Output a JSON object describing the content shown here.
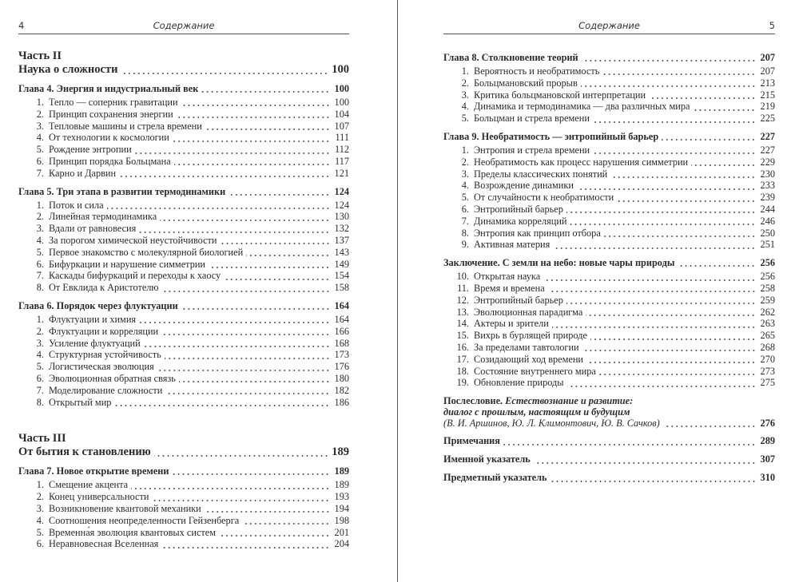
{
  "left_page": {
    "page_number": "4",
    "running_head": "Содержание",
    "parts": [
      {
        "label": "Часть II",
        "title": "Наука о сложности",
        "page": "100",
        "chapters": [
          {
            "title": "Глава 4.  Энергия и индустриальный век",
            "page": "100",
            "sections": [
              {
                "n": "1.",
                "t": "Тепло — соперник гравитации",
                "p": "100"
              },
              {
                "n": "2.",
                "t": "Принцип сохранения энергии",
                "p": "104"
              },
              {
                "n": "3.",
                "t": "Тепловые машины и стрела времени",
                "p": "107"
              },
              {
                "n": "4.",
                "t": "От технологии к космологии",
                "p": "111"
              },
              {
                "n": "5.",
                "t": "Рождение энтропии",
                "p": "112"
              },
              {
                "n": "6.",
                "t": "Принцип порядка Больцмана",
                "p": "117"
              },
              {
                "n": "7.",
                "t": "Карно и Дарвин",
                "p": "121"
              }
            ]
          },
          {
            "title": "Глава 5.  Три этапа в развитии термодинамики",
            "page": "124",
            "sections": [
              {
                "n": "1.",
                "t": "Поток и сила",
                "p": "124"
              },
              {
                "n": "2.",
                "t": "Линейная термодинамика",
                "p": "130"
              },
              {
                "n": "3.",
                "t": "Вдали от равновесия",
                "p": "132"
              },
              {
                "n": "4.",
                "t": "За порогом химической неустойчивости",
                "p": "137"
              },
              {
                "n": "5.",
                "t": "Первое знакомство с молекулярной биологией",
                "p": "143"
              },
              {
                "n": "6.",
                "t": "Бифуркации и нарушение симметрии",
                "p": "149"
              },
              {
                "n": "7.",
                "t": "Каскады бифуркаций и переходы к хаосу",
                "p": "154"
              },
              {
                "n": "8.",
                "t": "От Евклида к Аристотелю",
                "p": "158"
              }
            ]
          },
          {
            "title": "Глава 6.  Порядок через флуктуации",
            "page": "164",
            "sections": [
              {
                "n": "1.",
                "t": "Флуктуации и химия",
                "p": "164"
              },
              {
                "n": "2.",
                "t": "Флуктуации и корреляции",
                "p": "166"
              },
              {
                "n": "3.",
                "t": "Усиление флуктуаций",
                "p": "168"
              },
              {
                "n": "4.",
                "t": "Структурная устойчивость",
                "p": "173"
              },
              {
                "n": "5.",
                "t": "Логистическая эволюция",
                "p": "176"
              },
              {
                "n": "6.",
                "t": "Эволюционная обратная связь",
                "p": "180"
              },
              {
                "n": "7.",
                "t": "Моделирование сложности",
                "p": "182"
              },
              {
                "n": "8.",
                "t": "Открытый мир",
                "p": "186"
              }
            ]
          }
        ]
      },
      {
        "label": "Часть III",
        "title": "От бытия к становлению",
        "page": "189",
        "chapters": [
          {
            "title": "Глава 7.  Новое открытие времени",
            "page": "189",
            "sections": [
              {
                "n": "1.",
                "t": "Смещение акцента",
                "p": "189"
              },
              {
                "n": "2.",
                "t": "Конец универсальности",
                "p": "193"
              },
              {
                "n": "3.",
                "t": "Возникновение квантовой механики",
                "p": "194"
              },
              {
                "n": "4.",
                "t": "Соотношения неопределенности Гейзенберга",
                "p": "198"
              },
              {
                "n": "5.",
                "t": "Временна́я эволюция квантовых систем",
                "p": "201"
              },
              {
                "n": "6.",
                "t": "Неравновесная Вселенная",
                "p": "204"
              }
            ]
          }
        ]
      }
    ]
  },
  "right_page": {
    "page_number": "5",
    "running_head": "Содержание",
    "chapters": [
      {
        "title": "Глава 8.  Столкновение теорий",
        "page": "207",
        "sections": [
          {
            "n": "1.",
            "t": "Вероятность и необратимость",
            "p": "207"
          },
          {
            "n": "2.",
            "t": "Больцмановский прорыв",
            "p": "213"
          },
          {
            "n": "3.",
            "t": "Критика больцмановской интерпретации",
            "p": "215"
          },
          {
            "n": "4.",
            "t": "Динамика и термодинамика — два различных мира",
            "p": "219"
          },
          {
            "n": "5.",
            "t": "Больцман и стрела времени",
            "p": "225"
          }
        ]
      },
      {
        "title": "Глава 9.  Необратимость — энтропийный барьер",
        "page": "227",
        "sections": [
          {
            "n": "1.",
            "t": "Энтропия и стрела времени",
            "p": "227"
          },
          {
            "n": "2.",
            "t": "Необратимость как процесс нарушения симметрии",
            "p": "229"
          },
          {
            "n": "3.",
            "t": "Пределы классических понятий",
            "p": "230"
          },
          {
            "n": "4.",
            "t": "Возрождение динамики",
            "p": "233"
          },
          {
            "n": "5.",
            "t": "От случайности к необратимости",
            "p": "239"
          },
          {
            "n": "6.",
            "t": "Энтропийный барьер",
            "p": "244"
          },
          {
            "n": "7.",
            "t": "Динамика корреляций",
            "p": "246"
          },
          {
            "n": "8.",
            "t": "Энтропия как принцип отбора",
            "p": "250"
          },
          {
            "n": "9.",
            "t": "Активная материя",
            "p": "251"
          }
        ]
      },
      {
        "title": "Заключение. С земли на небо: новые чары природы",
        "page": "256",
        "sections": [
          {
            "n": "10.",
            "t": "Открытая наука",
            "p": "256"
          },
          {
            "n": "11.",
            "t": "Время и времена",
            "p": "258"
          },
          {
            "n": "12.",
            "t": "Энтропийный барьер",
            "p": "259"
          },
          {
            "n": "13.",
            "t": "Эволюционная парадигма",
            "p": "262"
          },
          {
            "n": "14.",
            "t": "Актеры и зрители",
            "p": "263"
          },
          {
            "n": "15.",
            "t": "Вихрь в бурлящей природе",
            "p": "265"
          },
          {
            "n": "16.",
            "t": "За пределами тавтологии",
            "p": "268"
          },
          {
            "n": "17.",
            "t": "Созидающий ход времени",
            "p": "270"
          },
          {
            "n": "18.",
            "t": "Состояние внутреннего мира",
            "p": "273"
          },
          {
            "n": "19.",
            "t": "Обновление природы",
            "p": "275"
          }
        ]
      }
    ],
    "afterword": {
      "label": "Послесловие.",
      "title_line1": "Естествознание и развитие:",
      "title_line2": "диалог с прошлым, настоящим и будущим",
      "authors": "(В. И. Аршинов, Ю. Л. Климонтович, Ю. В. Сачков)",
      "page": "276"
    },
    "back_matter": [
      {
        "title": "Примечания",
        "page": "289"
      },
      {
        "title": "Именной указатель",
        "page": "307"
      },
      {
        "title": "Предметный указатель",
        "page": "310"
      }
    ]
  }
}
